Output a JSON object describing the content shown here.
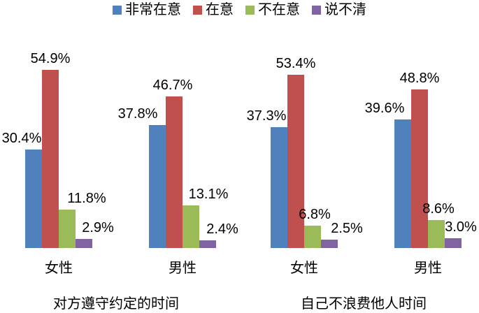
{
  "chart_data": {
    "type": "bar",
    "title": "",
    "legend_position": "top",
    "grid": false,
    "axes_visible": false,
    "ylim": [
      0,
      60
    ],
    "data_label_format": "0.0%",
    "categories": [
      "女性",
      "男性",
      "女性",
      "男性"
    ],
    "category_groups": [
      {
        "label": "对方遵守约定的时间",
        "categories": [
          "女性",
          "男性"
        ]
      },
      {
        "label": "自己不浪费他人时间",
        "categories": [
          "女性",
          "男性"
        ]
      }
    ],
    "series": [
      {
        "name": "非常在意",
        "color": "#4F81BD",
        "values": [
          30.4,
          37.8,
          37.3,
          39.6
        ]
      },
      {
        "name": "在意",
        "color": "#C0504D",
        "values": [
          54.9,
          46.7,
          53.4,
          48.8
        ]
      },
      {
        "name": "不在意",
        "color": "#9BBB59",
        "values": [
          11.8,
          13.1,
          6.8,
          8.6
        ]
      },
      {
        "name": "说不清",
        "color": "#8064A2",
        "values": [
          2.9,
          2.4,
          2.5,
          3.0
        ]
      }
    ],
    "data_labels": [
      [
        "30.4%",
        "37.8%",
        "37.3%",
        "39.6%"
      ],
      [
        "54.9%",
        "46.7%",
        "53.4%",
        "48.8%"
      ],
      [
        "11.8%",
        "13.1%",
        "6.8%",
        "8.6%"
      ],
      [
        "2.9%",
        "2.4%",
        "2.5%",
        "3.0%"
      ]
    ]
  }
}
